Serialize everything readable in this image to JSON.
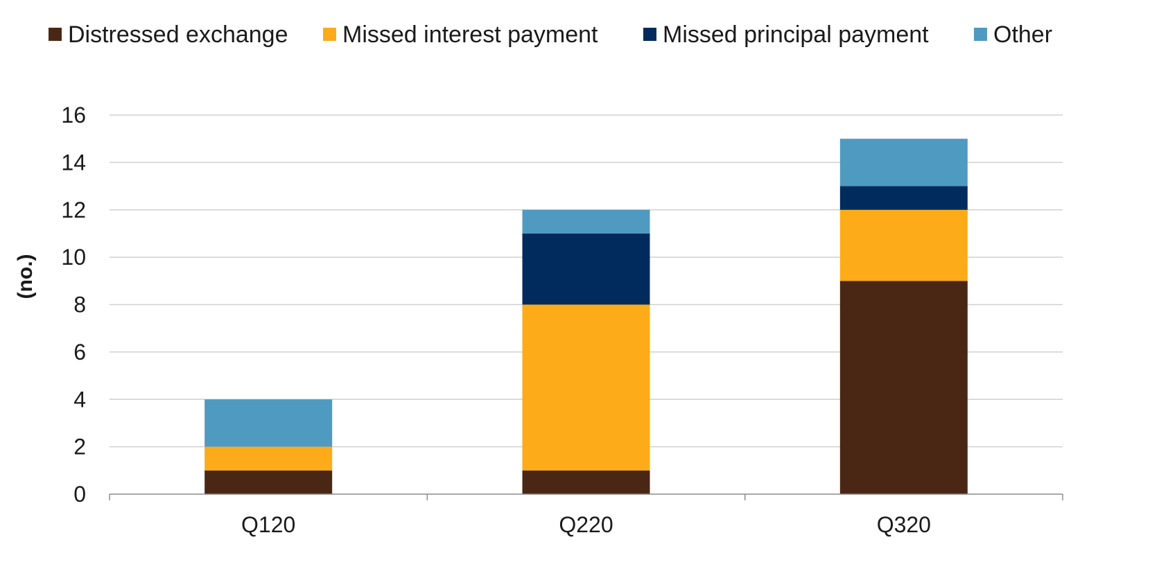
{
  "chart_data": {
    "type": "bar",
    "stacked": true,
    "title": "",
    "xlabel": "",
    "ylabel": "(no.)",
    "ylim": [
      0,
      16
    ],
    "yticks": [
      0,
      2,
      4,
      6,
      8,
      10,
      12,
      14,
      16
    ],
    "grid": true,
    "legend_position": "top",
    "categories": [
      "Q120",
      "Q220",
      "Q320"
    ],
    "series": [
      {
        "name": "Distressed exchange",
        "color": "#4a2715",
        "values": [
          1,
          1,
          9
        ]
      },
      {
        "name": "Missed interest payment",
        "color": "#fdab18",
        "values": [
          1,
          7,
          3
        ]
      },
      {
        "name": "Missed principal payment",
        "color": "#002b5c",
        "values": [
          0,
          3,
          1
        ]
      },
      {
        "name": "Other",
        "color": "#4f9ac1",
        "values": [
          2,
          1,
          2
        ]
      }
    ]
  }
}
